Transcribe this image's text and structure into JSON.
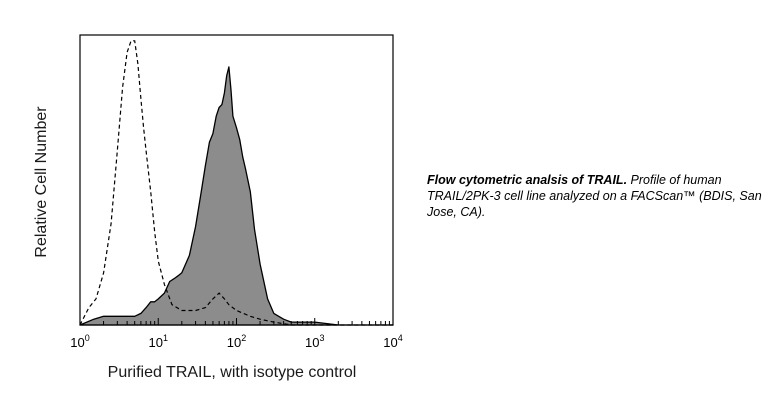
{
  "chart_data": {
    "type": "area",
    "xlabel": "Purified TRAIL, with isotype control",
    "ylabel": "Relative Cell Number",
    "x_scale": "log",
    "xlim": [
      1,
      10000
    ],
    "ylim": [
      0,
      100
    ],
    "x_ticks": [
      {
        "value": 1,
        "base": "10",
        "exp": "0"
      },
      {
        "value": 10,
        "base": "10",
        "exp": "1"
      },
      {
        "value": 100,
        "base": "10",
        "exp": "2"
      },
      {
        "value": 1000,
        "base": "10",
        "exp": "3"
      },
      {
        "value": 10000,
        "base": "10",
        "exp": "4"
      }
    ],
    "grid": false,
    "series": [
      {
        "style": "filled",
        "color": "#8c8c8c",
        "x": [
          1,
          1.5,
          2,
          3,
          4,
          5,
          6,
          7,
          8,
          9,
          10,
          12,
          14,
          16,
          18,
          20,
          25,
          30,
          35,
          40,
          45,
          50,
          55,
          60,
          65,
          70,
          75,
          80,
          85,
          90,
          100,
          110,
          120,
          130,
          150,
          170,
          200,
          250,
          300,
          400,
          500,
          700,
          1000,
          2000,
          5000,
          10000
        ],
        "y": [
          0,
          2,
          3,
          3,
          3,
          3,
          4,
          6,
          8,
          8,
          9,
          11,
          15,
          16,
          17,
          18,
          24,
          34,
          45,
          55,
          63,
          66,
          72,
          75,
          76,
          80,
          86,
          89,
          81,
          72,
          68,
          64,
          58,
          54,
          46,
          33,
          21,
          9,
          4,
          2,
          1,
          1,
          1,
          0,
          0,
          0
        ]
      },
      {
        "style": "dashed",
        "color": "#000000",
        "x": [
          1,
          1.3,
          1.6,
          2,
          2.5,
          3,
          3.5,
          4,
          4.5,
          5,
          5.5,
          6,
          6.5,
          7,
          8,
          9,
          10,
          12,
          15,
          20,
          30,
          40,
          50,
          60,
          70,
          80,
          100,
          150,
          200,
          300,
          500,
          1000,
          10000
        ],
        "y": [
          0,
          6,
          9,
          18,
          35,
          60,
          82,
          94,
          98,
          98,
          90,
          78,
          68,
          60,
          46,
          32,
          22,
          14,
          7,
          5,
          5,
          6,
          9,
          11,
          9,
          7,
          5,
          3,
          2,
          1,
          0,
          0,
          0
        ]
      }
    ]
  },
  "caption": {
    "bold": "Flow cytometric analsis of TRAIL.",
    "rest": " Profile of human TRAIL/2PK-3 cell line analyzed on a FACScan™ (BDIS, San Jose, CA)."
  }
}
